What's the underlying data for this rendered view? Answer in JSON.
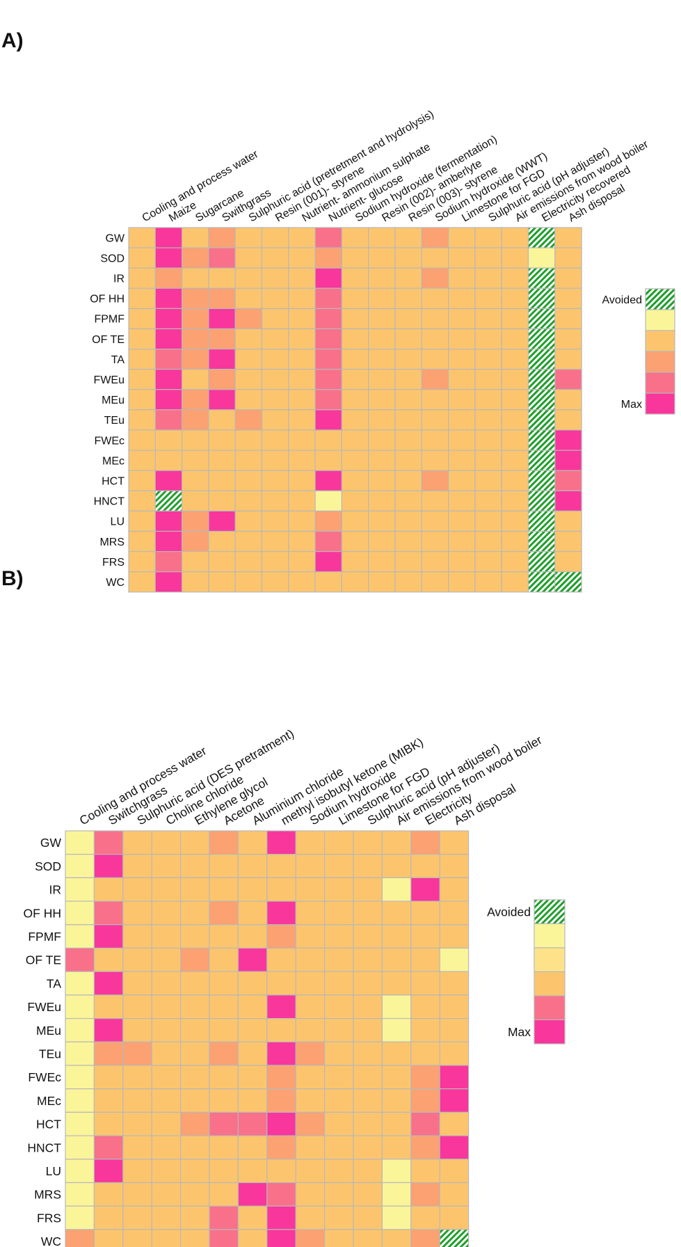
{
  "colors": {
    "L": "#fbf59a",
    "O": "#fcc56d",
    "S": "#fba172",
    "P": "#f9708a",
    "M": "#f8369b",
    "grid": "#b8b8b8",
    "hatch_fg": "#1e9e2a",
    "hatch_bg": "#ffffff"
  },
  "chart_data": [
    {
      "type": "heatmap",
      "panel_label": "A)",
      "value_scale": "ordinal; L = pale yellow (lowest), O = orange, S = salmon, P = pink, M = magenta (Max), A = avoided (hatched green)",
      "rows": [
        "GW",
        "SOD",
        "IR",
        "OF HH",
        "FPMF",
        "OF TE",
        "TA",
        "FWEu",
        "MEu",
        "TEu",
        "FWEc",
        "MEc",
        "HCT",
        "HNCT",
        "LU",
        "MRS",
        "FRS",
        "WC"
      ],
      "columns": [
        "Cooling and process water",
        "Maize",
        "Sugarcane",
        "Swithgrass",
        "Sulphuric acid (pretretment and hydrolysis)",
        "Resin (001)- styrene",
        "Nutrient- ammonium sulphate",
        "Nutrient- glucose",
        "Sodium hydroxide (fermentation)",
        "Resin (002)- amberlyte",
        "Resin (003)- styrene",
        "Sodium hydroxide (WWT)",
        "Limestone for FGD",
        "Sulphuric acid (pH adjuster)",
        "Air emissions from wood boiler",
        "Electricity recovered",
        "Ash disposal"
      ],
      "values": [
        "OMOSOOOPOOOSOOOAO",
        "OMSPOOOSOOOOOOOLO",
        "OSOOOOOMOOOSOOOAO",
        "OMSSOOOPOOOOOOOAO",
        "OMSMSOOPOOOOOOOAO",
        "OMSSOOOPOOOOOOOAO",
        "OPSMOOOPOOOOOOOAO",
        "OMOSOOOPOOOSOOOAP",
        "OMSMOOOPOOOOOOOAO",
        "OPSOSOOMOOOOOOOAO",
        "OOOOOOOOOOOOOOOAM",
        "OOOOOOOOOOOOOOOAM",
        "OMOOOOOMOOOSOOOAP",
        "OAOOOOOLOOOOOOOAM",
        "OMSMOOOSOOOOOOOAO",
        "OMSOOOOPOOOOOOOAO",
        "OPOOOOOMOOOOOOOAO",
        "OMOOOOOOOOOOOOOAA"
      ],
      "legend": {
        "top_label": "Avoided",
        "bottom_label": "Max",
        "swatches": [
          "A",
          "L",
          "O",
          "S",
          "P",
          "M"
        ]
      }
    },
    {
      "type": "heatmap",
      "panel_label": "B)",
      "value_scale": "ordinal; L = pale yellow (lowest), O = orange, S = salmon, P = pink, M = magenta (Max), A = avoided (hatched green)",
      "rows": [
        "GW",
        "SOD",
        "IR",
        "OF HH",
        "FPMF",
        "OF TE",
        "TA",
        "FWEu",
        "MEu",
        "TEu",
        "FWEc",
        "MEc",
        "HCT",
        "HNCT",
        "LU",
        "MRS",
        "FRS",
        "WC"
      ],
      "columns": [
        "Cooling and process water",
        "Switchgrass",
        "Sulphuric acid (DES pretratment)",
        "Choline chloride",
        "Ethylene glycol",
        "Acetone",
        "Aluminium chloride",
        "methyl isobutyl ketone (MIBK)",
        "Sodium hydroxide",
        "Limestone for FGD",
        "Sulphuric acid (pH adjuster)",
        "Air emissions from wood boiler",
        "Electricity",
        "Ash disposal"
      ],
      "values": [
        "LPOOOSOMOOOOSO",
        "LMOOOOOOOOOOOO",
        "LOOOOOOOOOOLMO",
        "LPOOOSOMOOOOOO",
        "LMOOOOOSOOOOOO",
        "POOOSOMOOOOOOL",
        "LMOOOOOOOOOOOO",
        "LOOOOOOMOOOLOO",
        "LMOOOOOOOOOLOO",
        "LSSOOSOMSOOOOO",
        "LOOOOOOSOOOOSM",
        "LOOOOOOSOOOOSM",
        "LOOOSPPMSOOOPO",
        "LPOOOOOSOOOOSM",
        "LMOOOOOOOOOLOO",
        "LOOOOOMPOOOLSO",
        "LOOOOPOMOOOLOO",
        "SOOOOPOMSOOOSA"
      ],
      "legend": {
        "top_label": "Avoided",
        "bottom_label": "Max",
        "swatches": [
          "A",
          "L",
          "L2",
          "O",
          "P",
          "M"
        ]
      }
    }
  ]
}
